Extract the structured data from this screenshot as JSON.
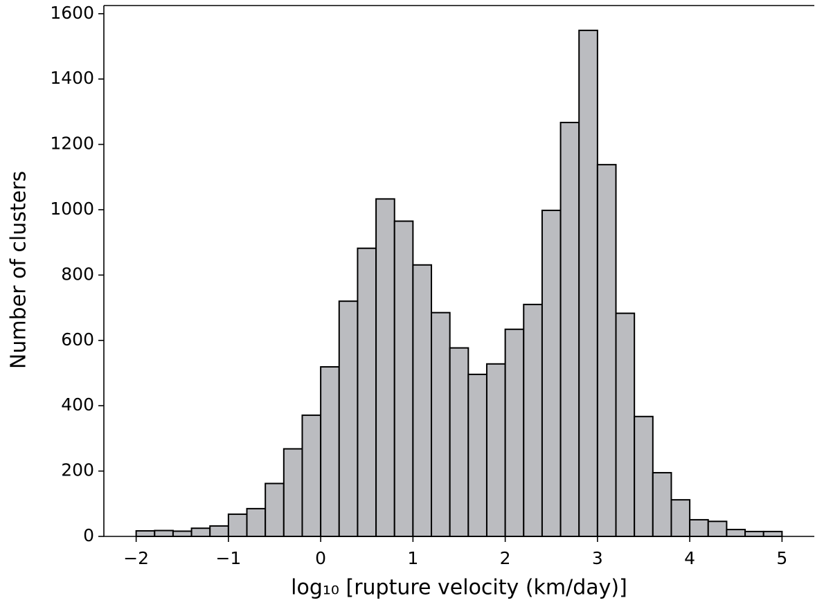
{
  "chart_data": {
    "type": "histogram",
    "xlabel": "log₁₀ [rupture velocity (km/day)]",
    "ylabel": "Number of clusters",
    "bins": [
      -2,
      -1.8,
      -1.6,
      -1.4,
      -1.2,
      -1,
      -0.8,
      -0.6,
      -0.4,
      -0.2,
      0,
      0.2,
      0.4,
      0.6,
      0.8,
      1,
      1.2,
      1.4,
      1.6,
      1.8,
      2,
      2.2,
      2.4,
      2.6,
      2.8,
      3,
      3.2,
      3.4,
      3.6,
      3.8,
      4,
      4.2,
      4.4,
      4.6,
      4.8,
      5
    ],
    "values": [
      17,
      18,
      16,
      25,
      32,
      68,
      85,
      162,
      268,
      371,
      519,
      720,
      882,
      1033,
      965,
      831,
      685,
      577,
      496,
      528,
      634,
      710,
      998,
      1267,
      1549,
      1138,
      683,
      367,
      195,
      112,
      51,
      46,
      21,
      15,
      15
    ],
    "color": "#bbbcc0",
    "xlim": [
      -2.35,
      5.35
    ],
    "ylim": [
      0,
      1625
    ],
    "xticks": [
      {
        "value": -2,
        "label": "−2"
      },
      {
        "value": -1,
        "label": "−1"
      },
      0,
      1,
      2,
      3,
      4,
      5
    ],
    "yticks": [
      0,
      200,
      400,
      600,
      800,
      1000,
      1200,
      1400,
      1600
    ]
  }
}
